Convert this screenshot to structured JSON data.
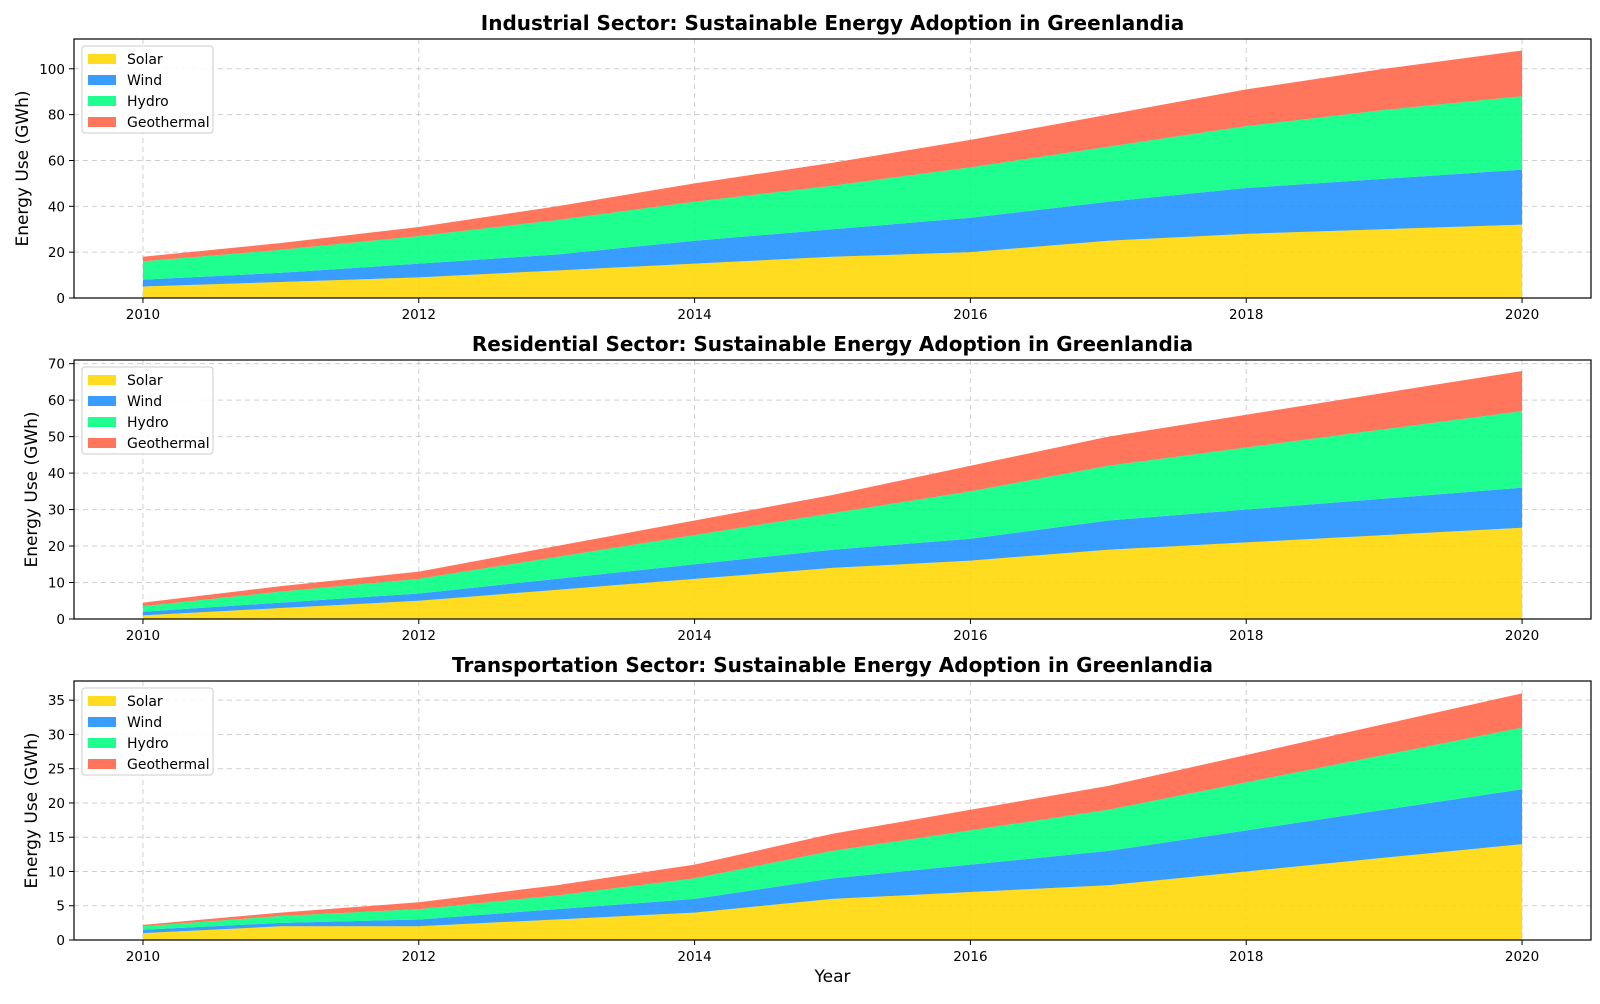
{
  "chart_data": [
    {
      "type": "area",
      "stacked": true,
      "title": "Industrial Sector: Sustainable Energy Adoption in Greenlandia",
      "xlabel": "",
      "ylabel": "Energy Use (GWh)",
      "x": [
        2010,
        2011,
        2012,
        2013,
        2014,
        2015,
        2016,
        2017,
        2018,
        2019,
        2020
      ],
      "xticks": [
        2010,
        2012,
        2014,
        2016,
        2018,
        2020
      ],
      "xlim": [
        2009.5,
        2020.5
      ],
      "ylim": [
        0,
        113
      ],
      "yticks": [
        0,
        20,
        40,
        60,
        80,
        100
      ],
      "grid": true,
      "legend_position": "upper-left",
      "series": [
        {
          "name": "Solar",
          "color": "#FFD700",
          "values": [
            5,
            7,
            9,
            12,
            15,
            18,
            20,
            25,
            28,
            30,
            32
          ]
        },
        {
          "name": "Wind",
          "color": "#1E90FF",
          "values": [
            3,
            4,
            6,
            7,
            10,
            12,
            15,
            17,
            20,
            22,
            24
          ]
        },
        {
          "name": "Hydro",
          "color": "#00FF7F",
          "values": [
            8,
            10,
            12,
            15,
            17,
            19,
            22,
            24,
            27,
            30,
            32
          ]
        },
        {
          "name": "Geothermal",
          "color": "#FF6347",
          "values": [
            2,
            3,
            4,
            6,
            8,
            10,
            12,
            14,
            16,
            18,
            20
          ]
        }
      ]
    },
    {
      "type": "area",
      "stacked": true,
      "title": "Residential Sector: Sustainable Energy Adoption in Greenlandia",
      "xlabel": "",
      "ylabel": "Energy Use (GWh)",
      "x": [
        2010,
        2011,
        2012,
        2013,
        2014,
        2015,
        2016,
        2017,
        2018,
        2019,
        2020
      ],
      "xticks": [
        2010,
        2012,
        2014,
        2016,
        2018,
        2020
      ],
      "xlim": [
        2009.5,
        2020.5
      ],
      "ylim": [
        0,
        71
      ],
      "yticks": [
        0,
        10,
        20,
        30,
        40,
        50,
        60,
        70
      ],
      "grid": true,
      "legend_position": "upper-left",
      "series": [
        {
          "name": "Solar",
          "color": "#FFD700",
          "values": [
            1,
            3,
            5,
            8,
            11,
            14,
            16,
            19,
            21,
            23,
            25
          ]
        },
        {
          "name": "Wind",
          "color": "#1E90FF",
          "values": [
            1,
            1.5,
            2,
            3,
            4,
            5,
            6,
            8,
            9,
            10,
            11
          ]
        },
        {
          "name": "Hydro",
          "color": "#00FF7F",
          "values": [
            1.5,
            3,
            4,
            6,
            8,
            10,
            13,
            15,
            17,
            19,
            21
          ]
        },
        {
          "name": "Geothermal",
          "color": "#FF6347",
          "values": [
            1,
            1.5,
            2,
            3,
            4,
            5,
            7,
            8,
            9,
            10,
            11
          ]
        }
      ]
    },
    {
      "type": "area",
      "stacked": true,
      "title": "Transportation Sector: Sustainable Energy Adoption in Greenlandia",
      "xlabel": "Year",
      "ylabel": "Energy Use (GWh)",
      "x": [
        2010,
        2011,
        2012,
        2013,
        2014,
        2015,
        2016,
        2017,
        2018,
        2019,
        2020
      ],
      "xticks": [
        2010,
        2012,
        2014,
        2016,
        2018,
        2020
      ],
      "xlim": [
        2009.5,
        2020.5
      ],
      "ylim": [
        0,
        37.8
      ],
      "yticks": [
        0,
        5,
        10,
        15,
        20,
        25,
        30,
        35
      ],
      "grid": true,
      "legend_position": "upper-left",
      "series": [
        {
          "name": "Solar",
          "color": "#FFD700",
          "values": [
            1,
            2,
            2,
            3,
            4,
            6,
            7,
            8,
            10,
            12,
            14
          ]
        },
        {
          "name": "Wind",
          "color": "#1E90FF",
          "values": [
            0.5,
            0.5,
            1,
            1.5,
            2,
            3,
            4,
            5,
            6,
            7,
            8
          ]
        },
        {
          "name": "Hydro",
          "color": "#00FF7F",
          "values": [
            0.5,
            1,
            1.5,
            2,
            3,
            4,
            5,
            6,
            7,
            8,
            9
          ]
        },
        {
          "name": "Geothermal",
          "color": "#FF6347",
          "values": [
            0.2,
            0.5,
            1,
            1.5,
            2,
            2.5,
            3,
            3.5,
            4,
            4.5,
            5
          ]
        }
      ]
    }
  ]
}
